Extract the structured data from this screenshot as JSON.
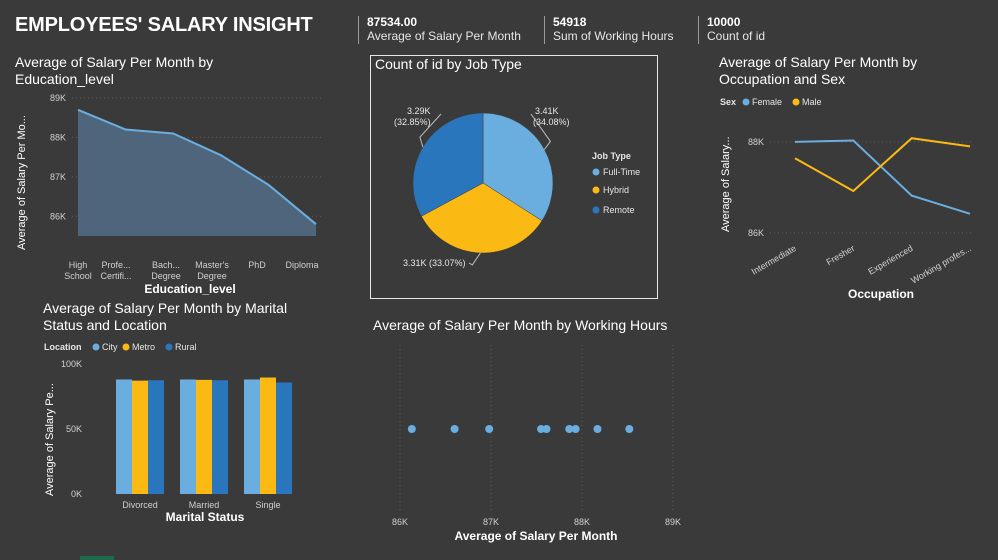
{
  "page": {
    "title": "EMPLOYEES' SALARY INSIGHT",
    "kpis": [
      {
        "value": "87534.00",
        "label": "Average of Salary Per Month"
      },
      {
        "value": "54918",
        "label": "Sum of Working Hours"
      },
      {
        "value": "10000",
        "label": "Count of id"
      }
    ]
  },
  "colors": {
    "background": "#3a3a3a",
    "light_blue": "#6aaee0",
    "yellow": "#fbb914",
    "dark_blue": "#2a76bd",
    "area": "#4e657c",
    "grid": "#5e5e5e"
  },
  "chart_data": [
    {
      "id": "education",
      "type": "area",
      "title_line1": "Average of Salary Per Month by",
      "title_line2": "Education_level",
      "xlabel": "Education_level",
      "ylabel": "Average of Salary Per Mo...",
      "categories": [
        [
          "High",
          "School"
        ],
        [
          "Profe...",
          "Certifi..."
        ],
        [
          "Bach...",
          "Degree"
        ],
        [
          "Master's",
          "Degree"
        ],
        [
          "PhD"
        ],
        [
          "Diploma"
        ]
      ],
      "values": [
        88700,
        88200,
        88100,
        87550,
        86800,
        85800
      ],
      "ylim": [
        85500,
        89000
      ],
      "yticks": [
        86000,
        87000,
        88000,
        89000
      ],
      "ytick_labels": [
        "86K",
        "87K",
        "88K",
        "89K"
      ]
    },
    {
      "id": "jobtype",
      "type": "pie",
      "title": "Count of id by Job Type",
      "legend_title": "Job Type",
      "slices": [
        {
          "name": "Full-Time",
          "value": 3410,
          "label": "3.41K",
          "pct": "(34.08%)"
        },
        {
          "name": "Hybrid",
          "value": 3310,
          "label": "3.31K (33.07%)"
        },
        {
          "name": "Remote",
          "value": 3290,
          "label": "3.29K",
          "pct": "(32.85%)"
        }
      ]
    },
    {
      "id": "occupation",
      "type": "line",
      "title_line1": "Average of Salary Per Month by",
      "title_line2": "Occupation and Sex",
      "legend_title": "Sex",
      "xlabel": "Occupation",
      "ylabel": "Average of Salary...",
      "categories": [
        "Intermediate",
        "Fresher",
        "Experienced",
        "Working profes..."
      ],
      "series": [
        {
          "name": "Female",
          "values": [
            88000,
            88030,
            86820,
            86420
          ]
        },
        {
          "name": "Male",
          "values": [
            87640,
            86920,
            88080,
            87900
          ]
        }
      ],
      "ylim": [
        85800,
        88700
      ],
      "yticks": [
        86000,
        88000
      ],
      "ytick_labels": [
        "86K",
        "88K"
      ]
    },
    {
      "id": "marital",
      "type": "bar",
      "title_line1": "Average of Salary Per Month by Marital",
      "title_line2": "Status and Location",
      "legend_title": "Location",
      "xlabel": "Marital Status",
      "ylabel": "Average of Salary Pe...",
      "categories": [
        "Divorced",
        "Married",
        "Single"
      ],
      "series": [
        {
          "name": "City",
          "values": [
            88100,
            88100,
            88100
          ]
        },
        {
          "name": "Metro",
          "values": [
            87200,
            87800,
            89600
          ]
        },
        {
          "name": "Rural",
          "values": [
            87500,
            87500,
            85800
          ]
        }
      ],
      "ylim": [
        0,
        100000
      ],
      "yticks": [
        0,
        50000,
        100000
      ],
      "ytick_labels": [
        "0K",
        "50K",
        "100K"
      ]
    },
    {
      "id": "hours",
      "type": "scatter",
      "title": "Average of Salary Per Month by Working Hours",
      "xlabel": "Average of Salary Per Month",
      "x": [
        86130,
        86600,
        86980,
        87550,
        87610,
        87860,
        87930,
        88170,
        88520
      ],
      "xlim": [
        86000,
        89000
      ],
      "xticks": [
        86000,
        87000,
        88000,
        89000
      ],
      "xtick_labels": [
        "86K",
        "87K",
        "88K",
        "89K"
      ]
    }
  ]
}
